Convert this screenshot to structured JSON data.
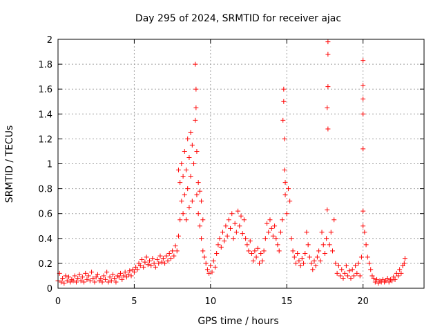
{
  "chart_data": {
    "type": "scatter",
    "title": "Day 295 of 2024, SRMTID for receiver ajac",
    "xlabel": "GPS time / hours",
    "ylabel": "SRMTID / TECUs",
    "xlim": [
      0,
      24
    ],
    "ylim": [
      0,
      2
    ],
    "xticks": [
      0,
      5,
      10,
      15,
      20
    ],
    "yticks": [
      0,
      0.2,
      0.4,
      0.6,
      0.8,
      1,
      1.2,
      1.4,
      1.6,
      1.8,
      2
    ],
    "xtick_labels": [
      "0",
      "5",
      "10",
      "15",
      "20"
    ],
    "ytick_labels": [
      "0",
      "0.2",
      "0.4",
      "0.6",
      "0.8",
      "1",
      "1.2",
      "1.4",
      "1.6",
      "1.8",
      "2"
    ],
    "grid": true,
    "marker": "plus",
    "color": "#ff0000",
    "series": [
      {
        "name": "SRMTID",
        "points": [
          [
            0.0,
            0.06
          ],
          [
            0.1,
            0.12
          ],
          [
            0.2,
            0.05
          ],
          [
            0.3,
            0.08
          ],
          [
            0.4,
            0.04
          ],
          [
            0.5,
            0.1
          ],
          [
            0.6,
            0.06
          ],
          [
            0.7,
            0.09
          ],
          [
            0.8,
            0.05
          ],
          [
            0.9,
            0.07
          ],
          [
            1.0,
            0.06
          ],
          [
            1.1,
            0.1
          ],
          [
            1.2,
            0.05
          ],
          [
            1.3,
            0.08
          ],
          [
            1.4,
            0.11
          ],
          [
            1.5,
            0.06
          ],
          [
            1.6,
            0.09
          ],
          [
            1.7,
            0.05
          ],
          [
            1.8,
            0.12
          ],
          [
            1.9,
            0.07
          ],
          [
            2.0,
            0.1
          ],
          [
            2.1,
            0.06
          ],
          [
            2.2,
            0.13
          ],
          [
            2.3,
            0.08
          ],
          [
            2.4,
            0.05
          ],
          [
            2.5,
            0.09
          ],
          [
            2.6,
            0.11
          ],
          [
            2.7,
            0.06
          ],
          [
            2.8,
            0.08
          ],
          [
            2.9,
            0.05
          ],
          [
            3.0,
            0.1
          ],
          [
            3.1,
            0.07
          ],
          [
            3.2,
            0.13
          ],
          [
            3.3,
            0.05
          ],
          [
            3.4,
            0.09
          ],
          [
            3.5,
            0.06
          ],
          [
            3.6,
            0.11
          ],
          [
            3.7,
            0.08
          ],
          [
            3.8,
            0.05
          ],
          [
            3.9,
            0.1
          ],
          [
            4.0,
            0.09
          ],
          [
            4.1,
            0.12
          ],
          [
            4.2,
            0.07
          ],
          [
            4.3,
            0.1
          ],
          [
            4.4,
            0.13
          ],
          [
            4.5,
            0.09
          ],
          [
            4.6,
            0.11
          ],
          [
            4.7,
            0.14
          ],
          [
            4.8,
            0.1
          ],
          [
            4.9,
            0.15
          ],
          [
            5.0,
            0.13
          ],
          [
            5.1,
            0.17
          ],
          [
            5.2,
            0.15
          ],
          [
            5.3,
            0.2
          ],
          [
            5.4,
            0.18
          ],
          [
            5.5,
            0.23
          ],
          [
            5.6,
            0.17
          ],
          [
            5.7,
            0.21
          ],
          [
            5.8,
            0.25
          ],
          [
            5.9,
            0.19
          ],
          [
            6.0,
            0.22
          ],
          [
            6.1,
            0.18
          ],
          [
            6.2,
            0.24
          ],
          [
            6.3,
            0.2
          ],
          [
            6.4,
            0.17
          ],
          [
            6.5,
            0.23
          ],
          [
            6.6,
            0.2
          ],
          [
            6.7,
            0.26
          ],
          [
            6.8,
            0.21
          ],
          [
            6.9,
            0.24
          ],
          [
            7.0,
            0.2
          ],
          [
            7.1,
            0.26
          ],
          [
            7.2,
            0.22
          ],
          [
            7.3,
            0.28
          ],
          [
            7.4,
            0.24
          ],
          [
            7.5,
            0.3
          ],
          [
            7.6,
            0.26
          ],
          [
            7.7,
            0.34
          ],
          [
            7.8,
            0.3
          ],
          [
            7.9,
            0.42
          ],
          [
            7.9,
            0.95
          ],
          [
            8.0,
            0.55
          ],
          [
            8.0,
            0.85
          ],
          [
            8.1,
            0.7
          ],
          [
            8.1,
            1.0
          ],
          [
            8.2,
            0.6
          ],
          [
            8.2,
            0.9
          ],
          [
            8.3,
            0.75
          ],
          [
            8.3,
            1.1
          ],
          [
            8.4,
            0.55
          ],
          [
            8.4,
            0.95
          ],
          [
            8.5,
            0.8
          ],
          [
            8.5,
            1.2
          ],
          [
            8.6,
            0.65
          ],
          [
            8.6,
            1.05
          ],
          [
            8.7,
            0.9
          ],
          [
            8.7,
            1.25
          ],
          [
            8.8,
            0.7
          ],
          [
            8.8,
            1.15
          ],
          [
            8.9,
            1.0
          ],
          [
            9.0,
            1.35
          ],
          [
            9.0,
            1.8
          ],
          [
            9.05,
            1.6
          ],
          [
            9.05,
            1.45
          ],
          [
            9.1,
            0.75
          ],
          [
            9.1,
            1.1
          ],
          [
            9.2,
            0.6
          ],
          [
            9.2,
            0.85
          ],
          [
            9.3,
            0.5
          ],
          [
            9.3,
            0.78
          ],
          [
            9.4,
            0.4
          ],
          [
            9.4,
            0.7
          ],
          [
            9.5,
            0.3
          ],
          [
            9.5,
            0.55
          ],
          [
            9.6,
            0.25
          ],
          [
            9.7,
            0.2
          ],
          [
            9.8,
            0.15
          ],
          [
            9.9,
            0.12
          ],
          [
            10.0,
            0.18
          ],
          [
            10.1,
            0.13
          ],
          [
            10.2,
            0.22
          ],
          [
            10.3,
            0.17
          ],
          [
            10.4,
            0.28
          ],
          [
            10.5,
            0.35
          ],
          [
            10.6,
            0.4
          ],
          [
            10.7,
            0.33
          ],
          [
            10.8,
            0.45
          ],
          [
            10.9,
            0.38
          ],
          [
            11.0,
            0.5
          ],
          [
            11.1,
            0.42
          ],
          [
            11.2,
            0.55
          ],
          [
            11.3,
            0.48
          ],
          [
            11.4,
            0.6
          ],
          [
            11.5,
            0.4
          ],
          [
            11.6,
            0.52
          ],
          [
            11.7,
            0.45
          ],
          [
            11.8,
            0.62
          ],
          [
            11.9,
            0.5
          ],
          [
            12.0,
            0.58
          ],
          [
            12.1,
            0.44
          ],
          [
            12.2,
            0.55
          ],
          [
            12.3,
            0.4
          ],
          [
            12.4,
            0.35
          ],
          [
            12.5,
            0.3
          ],
          [
            12.6,
            0.38
          ],
          [
            12.7,
            0.28
          ],
          [
            12.8,
            0.22
          ],
          [
            12.9,
            0.3
          ],
          [
            13.0,
            0.25
          ],
          [
            13.1,
            0.32
          ],
          [
            13.2,
            0.2
          ],
          [
            13.3,
            0.28
          ],
          [
            13.4,
            0.22
          ],
          [
            13.5,
            0.3
          ],
          [
            13.6,
            0.4
          ],
          [
            13.7,
            0.52
          ],
          [
            13.8,
            0.45
          ],
          [
            13.9,
            0.55
          ],
          [
            14.0,
            0.48
          ],
          [
            14.1,
            0.42
          ],
          [
            14.2,
            0.5
          ],
          [
            14.3,
            0.4
          ],
          [
            14.4,
            0.35
          ],
          [
            14.5,
            0.3
          ],
          [
            14.6,
            0.45
          ],
          [
            14.7,
            0.55
          ],
          [
            14.75,
            1.35
          ],
          [
            14.8,
            1.5
          ],
          [
            14.8,
            1.6
          ],
          [
            14.85,
            1.2
          ],
          [
            14.85,
            0.95
          ],
          [
            14.9,
            0.85
          ],
          [
            14.9,
            0.75
          ],
          [
            15.0,
            0.6
          ],
          [
            15.1,
            0.8
          ],
          [
            15.2,
            0.7
          ],
          [
            15.3,
            0.4
          ],
          [
            15.4,
            0.3
          ],
          [
            15.5,
            0.25
          ],
          [
            15.6,
            0.2
          ],
          [
            15.7,
            0.28
          ],
          [
            15.8,
            0.22
          ],
          [
            15.9,
            0.18
          ],
          [
            16.0,
            0.24
          ],
          [
            16.1,
            0.2
          ],
          [
            16.2,
            0.28
          ],
          [
            16.3,
            0.45
          ],
          [
            16.4,
            0.35
          ],
          [
            16.5,
            0.25
          ],
          [
            16.6,
            0.2
          ],
          [
            16.7,
            0.15
          ],
          [
            16.8,
            0.22
          ],
          [
            16.9,
            0.18
          ],
          [
            17.0,
            0.25
          ],
          [
            17.1,
            0.3
          ],
          [
            17.2,
            0.22
          ],
          [
            17.3,
            0.45
          ],
          [
            17.4,
            0.35
          ],
          [
            17.5,
            0.28
          ],
          [
            17.6,
            0.4
          ],
          [
            17.65,
            0.63
          ],
          [
            17.7,
            1.28
          ],
          [
            17.7,
            1.62
          ],
          [
            17.7,
            1.88
          ],
          [
            17.7,
            1.98
          ],
          [
            17.65,
            1.45
          ],
          [
            17.8,
            0.35
          ],
          [
            17.9,
            0.45
          ],
          [
            18.0,
            0.3
          ],
          [
            18.1,
            0.55
          ],
          [
            18.2,
            0.2
          ],
          [
            18.3,
            0.12
          ],
          [
            18.4,
            0.18
          ],
          [
            18.5,
            0.1
          ],
          [
            18.6,
            0.15
          ],
          [
            18.7,
            0.08
          ],
          [
            18.8,
            0.12
          ],
          [
            18.9,
            0.18
          ],
          [
            19.0,
            0.1
          ],
          [
            19.1,
            0.14
          ],
          [
            19.2,
            0.08
          ],
          [
            19.3,
            0.15
          ],
          [
            19.4,
            0.1
          ],
          [
            19.5,
            0.18
          ],
          [
            19.6,
            0.12
          ],
          [
            19.7,
            0.2
          ],
          [
            19.8,
            0.1
          ],
          [
            19.9,
            0.25
          ],
          [
            20.0,
            0.5
          ],
          [
            20.0,
            0.62
          ],
          [
            20.0,
            1.12
          ],
          [
            20.0,
            1.4
          ],
          [
            20.0,
            1.52
          ],
          [
            20.0,
            1.63
          ],
          [
            20.0,
            1.83
          ],
          [
            20.1,
            0.45
          ],
          [
            20.2,
            0.35
          ],
          [
            20.3,
            0.25
          ],
          [
            20.4,
            0.2
          ],
          [
            20.5,
            0.15
          ],
          [
            20.6,
            0.1
          ],
          [
            20.7,
            0.08
          ],
          [
            20.8,
            0.05
          ],
          [
            20.9,
            0.07
          ],
          [
            21.0,
            0.04
          ],
          [
            21.1,
            0.06
          ],
          [
            21.2,
            0.05
          ],
          [
            21.3,
            0.07
          ],
          [
            21.4,
            0.05
          ],
          [
            21.5,
            0.06
          ],
          [
            21.6,
            0.08
          ],
          [
            21.7,
            0.05
          ],
          [
            21.8,
            0.07
          ],
          [
            21.9,
            0.06
          ],
          [
            22.0,
            0.09
          ],
          [
            22.1,
            0.07
          ],
          [
            22.2,
            0.12
          ],
          [
            22.3,
            0.1
          ],
          [
            22.4,
            0.15
          ],
          [
            22.5,
            0.12
          ],
          [
            22.6,
            0.18
          ],
          [
            22.7,
            0.2
          ],
          [
            22.75,
            0.24
          ]
        ]
      }
    ]
  }
}
